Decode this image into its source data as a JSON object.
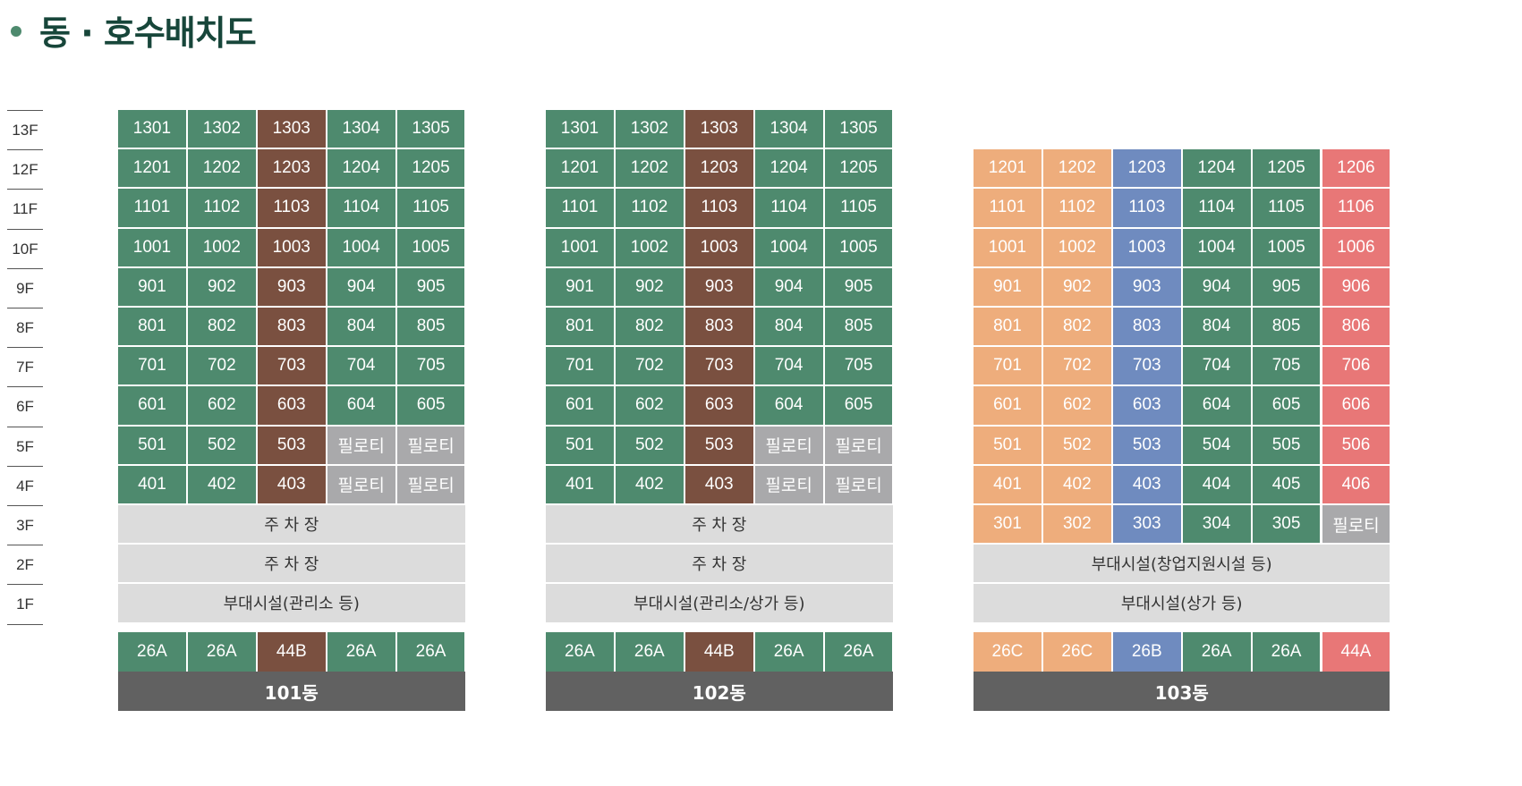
{
  "title": "동 · 호수배치도",
  "floors": [
    "13F",
    "12F",
    "11F",
    "10F",
    "9F",
    "8F",
    "7F",
    "6F",
    "5F",
    "4F",
    "3F",
    "2F",
    "1F"
  ],
  "colors": {
    "green": "#4e8a6e",
    "brown": "#7a5040",
    "orange": "#eead7c",
    "blue": "#6f8bbf",
    "red": "#e87777",
    "gray": "#a9a9ab",
    "light": "#dcdcdc",
    "dark": "#616161"
  },
  "pilotis": "필로티",
  "buildings": [
    {
      "name": "101동",
      "x": 132,
      "cols": 5,
      "topFloor": 13,
      "units": [
        {
          "row": 13,
          "labels": [
            "1301",
            "1302",
            "1303",
            "1304",
            "1305"
          ],
          "colors": [
            "green",
            "green",
            "brown",
            "green",
            "green"
          ]
        },
        {
          "row": 12,
          "labels": [
            "1201",
            "1202",
            "1203",
            "1204",
            "1205"
          ],
          "colors": [
            "green",
            "green",
            "brown",
            "green",
            "green"
          ]
        },
        {
          "row": 11,
          "labels": [
            "1101",
            "1102",
            "1103",
            "1104",
            "1105"
          ],
          "colors": [
            "green",
            "green",
            "brown",
            "green",
            "green"
          ]
        },
        {
          "row": 10,
          "labels": [
            "1001",
            "1002",
            "1003",
            "1004",
            "1005"
          ],
          "colors": [
            "green",
            "green",
            "brown",
            "green",
            "green"
          ]
        },
        {
          "row": 9,
          "labels": [
            "901",
            "902",
            "903",
            "904",
            "905"
          ],
          "colors": [
            "green",
            "green",
            "brown",
            "green",
            "green"
          ]
        },
        {
          "row": 8,
          "labels": [
            "801",
            "802",
            "803",
            "804",
            "805"
          ],
          "colors": [
            "green",
            "green",
            "brown",
            "green",
            "green"
          ]
        },
        {
          "row": 7,
          "labels": [
            "701",
            "702",
            "703",
            "704",
            "705"
          ],
          "colors": [
            "green",
            "green",
            "brown",
            "green",
            "green"
          ]
        },
        {
          "row": 6,
          "labels": [
            "601",
            "602",
            "603",
            "604",
            "605"
          ],
          "colors": [
            "green",
            "green",
            "brown",
            "green",
            "green"
          ]
        },
        {
          "row": 5,
          "labels": [
            "501",
            "502",
            "503",
            "필로티",
            "필로티"
          ],
          "colors": [
            "green",
            "green",
            "brown",
            "gray",
            "gray"
          ]
        },
        {
          "row": 4,
          "labels": [
            "401",
            "402",
            "403",
            "필로티",
            "필로티"
          ],
          "colors": [
            "green",
            "green",
            "brown",
            "gray",
            "gray"
          ]
        }
      ],
      "wide": [
        {
          "row": 3,
          "label": "주 차 장"
        },
        {
          "row": 2,
          "label": "주 차 장"
        },
        {
          "row": 1,
          "label": "부대시설(관리소 등)"
        }
      ],
      "types": [
        "26A",
        "26A",
        "44B",
        "26A",
        "26A"
      ],
      "typeColors": [
        "green",
        "green",
        "brown",
        "green",
        "green"
      ]
    },
    {
      "name": "102동",
      "x": 610,
      "cols": 5,
      "topFloor": 13,
      "units": [
        {
          "row": 13,
          "labels": [
            "1301",
            "1302",
            "1303",
            "1304",
            "1305"
          ],
          "colors": [
            "green",
            "green",
            "brown",
            "green",
            "green"
          ]
        },
        {
          "row": 12,
          "labels": [
            "1201",
            "1202",
            "1203",
            "1204",
            "1205"
          ],
          "colors": [
            "green",
            "green",
            "brown",
            "green",
            "green"
          ]
        },
        {
          "row": 11,
          "labels": [
            "1101",
            "1102",
            "1103",
            "1104",
            "1105"
          ],
          "colors": [
            "green",
            "green",
            "brown",
            "green",
            "green"
          ]
        },
        {
          "row": 10,
          "labels": [
            "1001",
            "1002",
            "1003",
            "1004",
            "1005"
          ],
          "colors": [
            "green",
            "green",
            "brown",
            "green",
            "green"
          ]
        },
        {
          "row": 9,
          "labels": [
            "901",
            "902",
            "903",
            "904",
            "905"
          ],
          "colors": [
            "green",
            "green",
            "brown",
            "green",
            "green"
          ]
        },
        {
          "row": 8,
          "labels": [
            "801",
            "802",
            "803",
            "804",
            "805"
          ],
          "colors": [
            "green",
            "green",
            "brown",
            "green",
            "green"
          ]
        },
        {
          "row": 7,
          "labels": [
            "701",
            "702",
            "703",
            "704",
            "705"
          ],
          "colors": [
            "green",
            "green",
            "brown",
            "green",
            "green"
          ]
        },
        {
          "row": 6,
          "labels": [
            "601",
            "602",
            "603",
            "604",
            "605"
          ],
          "colors": [
            "green",
            "green",
            "brown",
            "green",
            "green"
          ]
        },
        {
          "row": 5,
          "labels": [
            "501",
            "502",
            "503",
            "필로티",
            "필로티"
          ],
          "colors": [
            "green",
            "green",
            "brown",
            "gray",
            "gray"
          ]
        },
        {
          "row": 4,
          "labels": [
            "401",
            "402",
            "403",
            "필로티",
            "필로티"
          ],
          "colors": [
            "green",
            "green",
            "brown",
            "gray",
            "gray"
          ]
        }
      ],
      "wide": [
        {
          "row": 3,
          "label": "주 차 장"
        },
        {
          "row": 2,
          "label": "주 차 장"
        },
        {
          "row": 1,
          "label": "부대시설(관리소/상가 등)"
        }
      ],
      "types": [
        "26A",
        "26A",
        "44B",
        "26A",
        "26A"
      ],
      "typeColors": [
        "green",
        "green",
        "brown",
        "green",
        "green"
      ]
    },
    {
      "name": "103동",
      "x": 1088,
      "cols": 6,
      "topFloor": 12,
      "units": [
        {
          "row": 12,
          "labels": [
            "1201",
            "1202",
            "1203",
            "1204",
            "1205",
            "1206"
          ],
          "colors": [
            "orange",
            "orange",
            "blue",
            "green",
            "green",
            "red"
          ]
        },
        {
          "row": 11,
          "labels": [
            "1101",
            "1102",
            "1103",
            "1104",
            "1105",
            "1106"
          ],
          "colors": [
            "orange",
            "orange",
            "blue",
            "green",
            "green",
            "red"
          ]
        },
        {
          "row": 10,
          "labels": [
            "1001",
            "1002",
            "1003",
            "1004",
            "1005",
            "1006"
          ],
          "colors": [
            "orange",
            "orange",
            "blue",
            "green",
            "green",
            "red"
          ]
        },
        {
          "row": 9,
          "labels": [
            "901",
            "902",
            "903",
            "904",
            "905",
            "906"
          ],
          "colors": [
            "orange",
            "orange",
            "blue",
            "green",
            "green",
            "red"
          ]
        },
        {
          "row": 8,
          "labels": [
            "801",
            "802",
            "803",
            "804",
            "805",
            "806"
          ],
          "colors": [
            "orange",
            "orange",
            "blue",
            "green",
            "green",
            "red"
          ]
        },
        {
          "row": 7,
          "labels": [
            "701",
            "702",
            "703",
            "704",
            "705",
            "706"
          ],
          "colors": [
            "orange",
            "orange",
            "blue",
            "green",
            "green",
            "red"
          ]
        },
        {
          "row": 6,
          "labels": [
            "601",
            "602",
            "603",
            "604",
            "605",
            "606"
          ],
          "colors": [
            "orange",
            "orange",
            "blue",
            "green",
            "green",
            "red"
          ]
        },
        {
          "row": 5,
          "labels": [
            "501",
            "502",
            "503",
            "504",
            "505",
            "506"
          ],
          "colors": [
            "orange",
            "orange",
            "blue",
            "green",
            "green",
            "red"
          ]
        },
        {
          "row": 4,
          "labels": [
            "401",
            "402",
            "403",
            "404",
            "405",
            "406"
          ],
          "colors": [
            "orange",
            "orange",
            "blue",
            "green",
            "green",
            "red"
          ]
        },
        {
          "row": 3,
          "labels": [
            "301",
            "302",
            "303",
            "304",
            "305",
            "필로티"
          ],
          "colors": [
            "orange",
            "orange",
            "blue",
            "green",
            "green",
            "gray"
          ]
        }
      ],
      "wide": [
        {
          "row": 2,
          "label": "부대시설(창업지원시설 등)"
        },
        {
          "row": 1,
          "label": "부대시설(상가 등)"
        }
      ],
      "types": [
        "26C",
        "26C",
        "26B",
        "26A",
        "26A",
        "44A"
      ],
      "typeColors": [
        "orange",
        "orange",
        "blue",
        "green",
        "green",
        "red"
      ]
    }
  ]
}
